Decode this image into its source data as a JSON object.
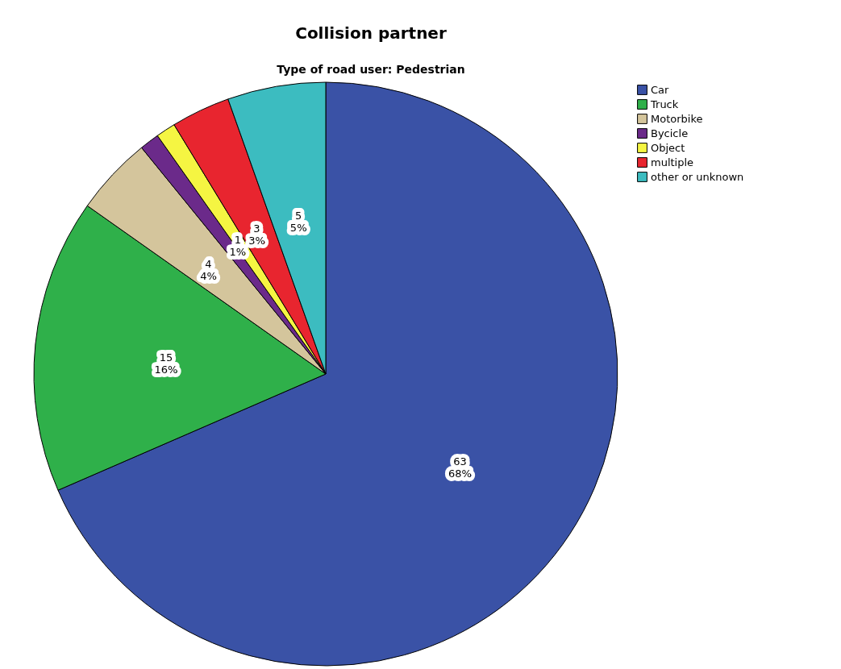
{
  "chart_data": {
    "type": "pie",
    "title": "Collision partner",
    "subtitle": "Type of road user: Pedestrian",
    "categories": [
      "Car",
      "Truck",
      "Motorbike",
      "Bycicle",
      "Object",
      "multiple",
      "other or unknown"
    ],
    "values": [
      63,
      15,
      4,
      1,
      1,
      3,
      5
    ],
    "colors": [
      "#3a52a6",
      "#2fb04a",
      "#d4c59c",
      "#6b2a8a",
      "#f5f542",
      "#e8252f",
      "#3cbcc0"
    ],
    "value_labels": [
      "63\n68%",
      "15\n16%",
      "4\n4%",
      null,
      "1\n1%",
      "3\n3%",
      "5\n5%"
    ],
    "legend": "top right"
  }
}
